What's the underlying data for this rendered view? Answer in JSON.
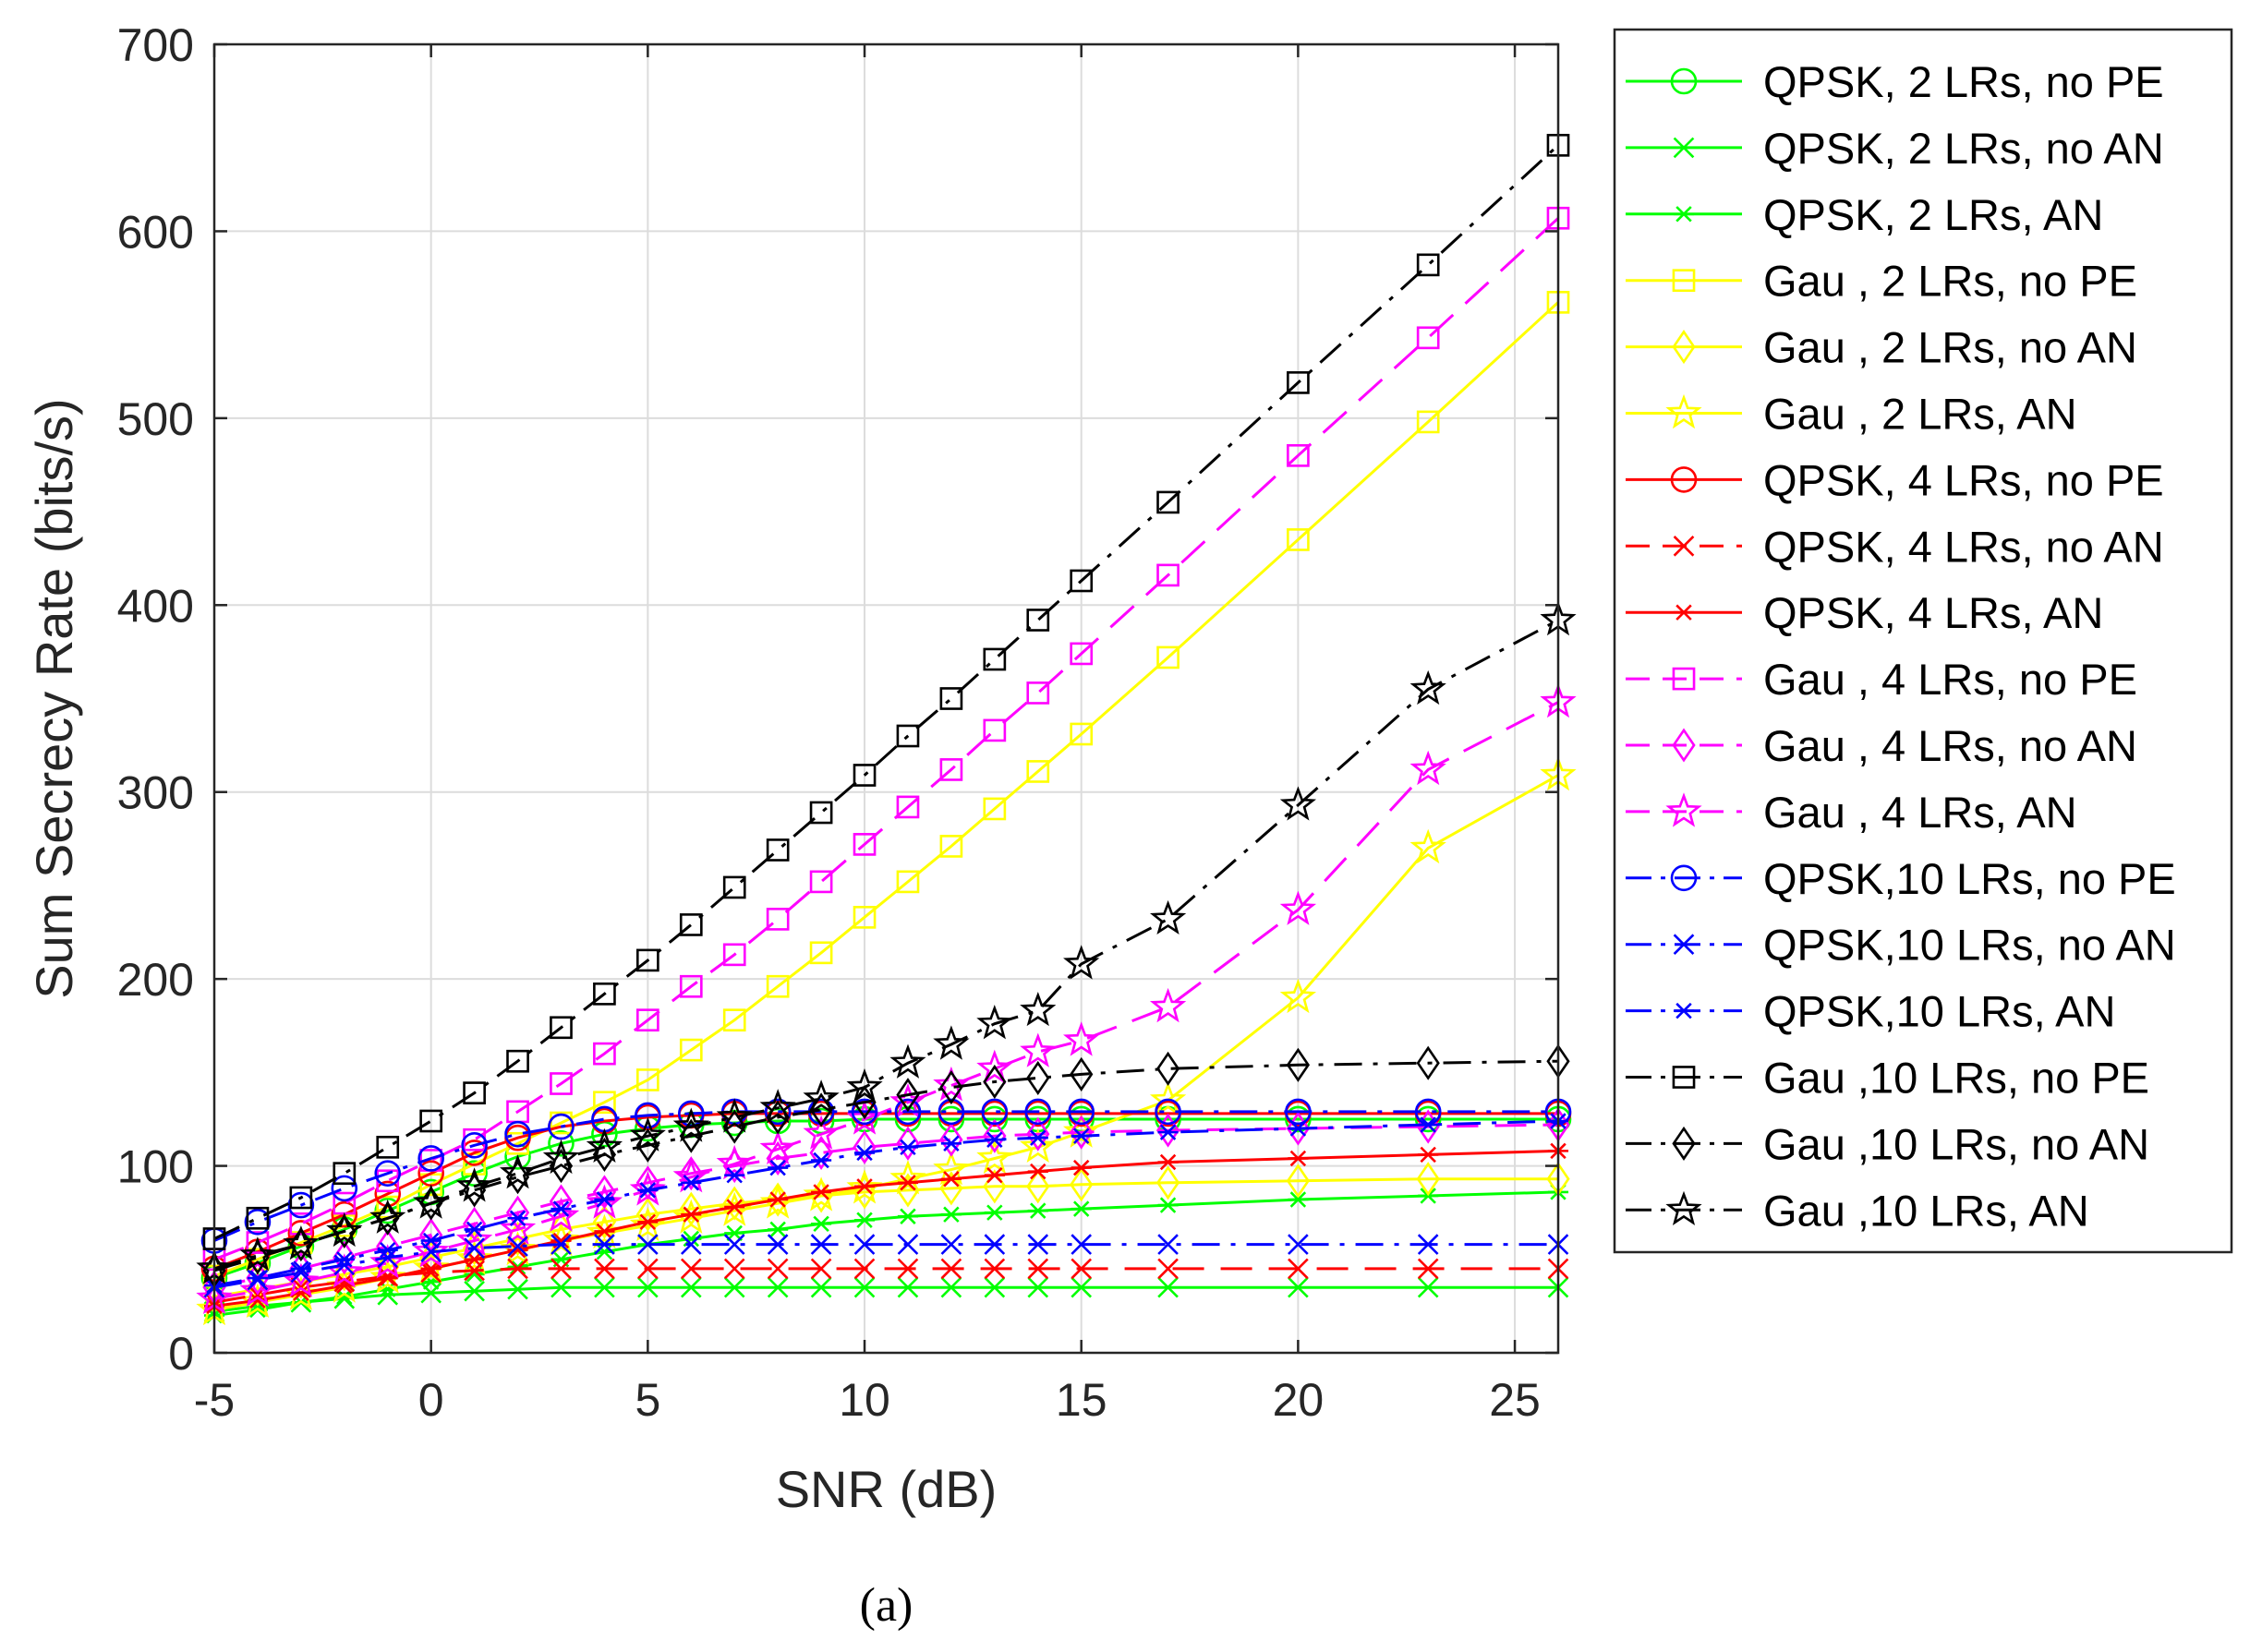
{
  "caption": "(a)",
  "chart_data": {
    "type": "line",
    "title": "",
    "xlabel": "SNR (dB)",
    "ylabel": "Sum Secrecy Rate (bits/s)",
    "xlim": [
      -5,
      26
    ],
    "ylim": [
      0,
      700
    ],
    "xticks": [
      -5,
      0,
      5,
      10,
      15,
      20,
      25
    ],
    "yticks": [
      0,
      100,
      200,
      300,
      400,
      500,
      600,
      700
    ],
    "xtick_labels": [
      "-5",
      "0",
      "5",
      "10",
      "15",
      "20",
      "25"
    ],
    "ytick_labels": [
      "0",
      "100",
      "200",
      "300",
      "400",
      "500",
      "600",
      "700"
    ],
    "grid": true,
    "legend_position": "outside-right",
    "x": [
      -5,
      -4,
      -3,
      -2,
      -1,
      0,
      1,
      2,
      3,
      4,
      5,
      6,
      7,
      8,
      9,
      10,
      11,
      12,
      13,
      14,
      15,
      17,
      20,
      23,
      26
    ],
    "series": [
      {
        "name": "QPSK,  2 LRs, no PE",
        "color": "#00ff00",
        "line": "solid",
        "marker": "circle",
        "values": [
          40,
          48,
          57,
          66,
          76,
          86,
          96,
          105,
          112,
          117,
          120,
          122,
          123,
          124,
          124,
          125,
          125,
          125,
          125,
          125,
          125,
          125,
          125,
          125,
          125
        ]
      },
      {
        "name": "QPSK,  2 LRs, no AN",
        "color": "#00ff00",
        "line": "solid",
        "marker": "x",
        "values": [
          22,
          25,
          27,
          29,
          31,
          32,
          33,
          34,
          35,
          35,
          35,
          35,
          35,
          35,
          35,
          35,
          35,
          35,
          35,
          35,
          35,
          35,
          35,
          35,
          35
        ]
      },
      {
        "name": "QPSK,  2 LRs, AN",
        "color": "#00ff00",
        "line": "solid",
        "marker": "asterisk",
        "values": [
          20,
          23,
          27,
          30,
          34,
          38,
          42,
          46,
          50,
          54,
          58,
          61,
          64,
          66,
          69,
          71,
          73,
          74,
          75,
          76,
          77,
          79,
          82,
          84,
          86
        ]
      },
      {
        "name": "Gau   ,  2 LRs, no PE",
        "color": "#ffff00",
        "line": "solid",
        "marker": "square",
        "values": [
          41,
          50,
          59,
          68,
          78,
          90,
          101,
          112,
          123,
          134,
          146,
          162,
          178,
          196,
          214,
          233,
          252,
          271,
          291,
          311,
          331,
          372,
          435,
          498,
          562
        ]
      },
      {
        "name": "Gau   ,  2 LRs, no AN",
        "color": "#ffff00",
        "line": "solid",
        "marker": "diamond",
        "values": [
          30,
          34,
          38,
          42,
          46,
          51,
          56,
          61,
          66,
          70,
          74,
          77,
          80,
          82,
          84,
          86,
          87,
          88,
          89,
          89,
          90,
          91,
          92,
          93,
          93
        ]
      },
      {
        "name": "Gau   ,  2 LRs, AN",
        "color": "#ffff00",
        "line": "solid",
        "marker": "star",
        "values": [
          23,
          27,
          31,
          35,
          40,
          45,
          50,
          55,
          60,
          64,
          68,
          72,
          76,
          80,
          84,
          88,
          93,
          98,
          104,
          110,
          118,
          135,
          190,
          270,
          309
        ]
      },
      {
        "name": "QPSK,  4 LRs, no PE",
        "color": "#ff0000",
        "line": "solid",
        "marker": "circle",
        "values": [
          45,
          54,
          64,
          74,
          85,
          96,
          107,
          115,
          121,
          124,
          126,
          127,
          128,
          128,
          128,
          128,
          128,
          128,
          128,
          128,
          128,
          128,
          128,
          128,
          128
        ]
      },
      {
        "name": "QPSK,  4 LRs, no AN",
        "color": "#ff0000",
        "line": "dashed",
        "marker": "x",
        "values": [
          27,
          31,
          35,
          38,
          41,
          43,
          44,
          45,
          45,
          45,
          45,
          45,
          45,
          45,
          45,
          45,
          45,
          45,
          45,
          45,
          45,
          45,
          45,
          45,
          45
        ]
      },
      {
        "name": "QPSK,  4 LRs, AN",
        "color": "#ff0000",
        "line": "solid",
        "marker": "asterisk",
        "values": [
          25,
          28,
          32,
          36,
          40,
          45,
          50,
          55,
          60,
          65,
          70,
          74,
          78,
          82,
          86,
          89,
          91,
          93,
          95,
          97,
          99,
          102,
          104,
          106,
          108
        ]
      },
      {
        "name": "Gau   ,  4 LRs, no PE",
        "color": "#ff00ff",
        "line": "dashed",
        "marker": "square",
        "values": [
          50,
          59,
          69,
          80,
          92,
          103,
          114,
          129,
          144,
          160,
          178,
          196,
          213,
          232,
          252,
          272,
          292,
          312,
          333,
          353,
          374,
          416,
          480,
          543,
          607
        ]
      },
      {
        "name": "Gau   ,  4 LRs, no AN",
        "color": "#ff00ff",
        "line": "dashed",
        "marker": "diamond",
        "values": [
          35,
          40,
          45,
          51,
          57,
          63,
          69,
          75,
          81,
          86,
          91,
          96,
          100,
          104,
          107,
          110,
          112,
          114,
          116,
          117,
          118,
          119,
          120,
          121,
          122
        ]
      },
      {
        "name": "Gau   ,  4 LRs, AN",
        "color": "#ff00ff",
        "line": "dashed",
        "marker": "star",
        "values": [
          29,
          33,
          38,
          43,
          48,
          54,
          60,
          66,
          73,
          80,
          87,
          94,
          101,
          109,
          117,
          125,
          134,
          143,
          152,
          161,
          167,
          185,
          237,
          312,
          348
        ]
      },
      {
        "name": "QPSK,10 LRs, no PE",
        "color": "#0000ff",
        "line": "dashdot",
        "marker": "circle",
        "values": [
          60,
          70,
          79,
          88,
          96,
          104,
          111,
          117,
          121,
          125,
          127,
          128,
          129,
          129,
          129,
          129,
          129,
          129,
          129,
          129,
          129,
          129,
          129,
          129,
          129
        ]
      },
      {
        "name": "QPSK,10 LRs, no AN",
        "color": "#0000ff",
        "line": "dashdot",
        "marker": "x",
        "values": [
          35,
          39,
          43,
          47,
          51,
          54,
          56,
          57,
          58,
          58,
          58,
          58,
          58,
          58,
          58,
          58,
          58,
          58,
          58,
          58,
          58,
          58,
          58,
          58,
          58
        ]
      },
      {
        "name": "QPSK,10 LRs, AN",
        "color": "#0000ff",
        "line": "dashdot",
        "marker": "asterisk",
        "values": [
          36,
          40,
          45,
          50,
          55,
          60,
          66,
          72,
          77,
          82,
          87,
          91,
          95,
          99,
          103,
          107,
          110,
          112,
          114,
          115,
          116,
          118,
          120,
          122,
          124
        ]
      },
      {
        "name": "Gau   ,10 LRs, no PE",
        "color": "#000000",
        "line": "dashdot",
        "marker": "square",
        "values": [
          61,
          72,
          83,
          96,
          110,
          124,
          139,
          156,
          174,
          192,
          210,
          229,
          249,
          269,
          289,
          309,
          330,
          350,
          371,
          392,
          413,
          455,
          519,
          582,
          646
        ]
      },
      {
        "name": "Gau   ,10 LRs, no AN",
        "color": "#000000",
        "line": "dashdot",
        "marker": "diamond",
        "values": [
          44,
          51,
          58,
          65,
          72,
          80,
          87,
          94,
          100,
          106,
          111,
          116,
          121,
          126,
          130,
          134,
          138,
          142,
          145,
          147,
          149,
          152,
          154,
          155,
          156
        ]
      },
      {
        "name": "Gau   ,10 LRs, AN",
        "color": "#000000",
        "line": "dashdot",
        "marker": "star",
        "values": [
          45,
          52,
          58,
          65,
          72,
          80,
          89,
          96,
          104,
          110,
          116,
          121,
          126,
          131,
          136,
          142,
          155,
          165,
          176,
          183,
          208,
          232,
          293,
          355,
          392
        ]
      }
    ]
  }
}
